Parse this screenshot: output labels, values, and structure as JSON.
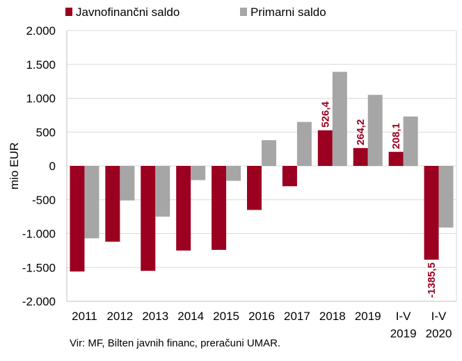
{
  "chart_data": {
    "type": "bar",
    "ylabel": "mio EUR",
    "ylim": [
      -2000,
      2000
    ],
    "ytick_step": 500,
    "ytick_labels": [
      "2.000",
      "1.500",
      "1.000",
      "500",
      "0",
      "-500",
      "-1.000",
      "-1.500",
      "-2.000"
    ],
    "categories": [
      [
        "2011"
      ],
      [
        "2012"
      ],
      [
        "2013"
      ],
      [
        "2014"
      ],
      [
        "2015"
      ],
      [
        "2016"
      ],
      [
        "2017"
      ],
      [
        "2018"
      ],
      [
        "2019"
      ],
      [
        "I-V",
        "2019"
      ],
      [
        "I-V",
        "2020"
      ]
    ],
    "series": [
      {
        "name": "Javnofinančni saldo",
        "color": "#9b0020",
        "values": [
          -1560,
          -1120,
          -1550,
          -1250,
          -1240,
          -650,
          -300,
          526.4,
          264.2,
          208.1,
          -1385.5
        ]
      },
      {
        "name": "Primarni saldo",
        "color": "#a6a6a6",
        "values": [
          -1070,
          -510,
          -750,
          -210,
          -220,
          380,
          650,
          1390,
          1050,
          730,
          -910
        ]
      }
    ],
    "data_labels": [
      {
        "category_index": 7,
        "series_index": 0,
        "text": "526,4"
      },
      {
        "category_index": 8,
        "series_index": 0,
        "text": "264,2"
      },
      {
        "category_index": 9,
        "series_index": 0,
        "text": "208,1"
      },
      {
        "category_index": 10,
        "series_index": 0,
        "text": "-1385,5"
      }
    ],
    "grid": true,
    "legend": "top-left"
  },
  "source_note": "Vir: MF, Bilten javnih financ, preračuni UMAR."
}
